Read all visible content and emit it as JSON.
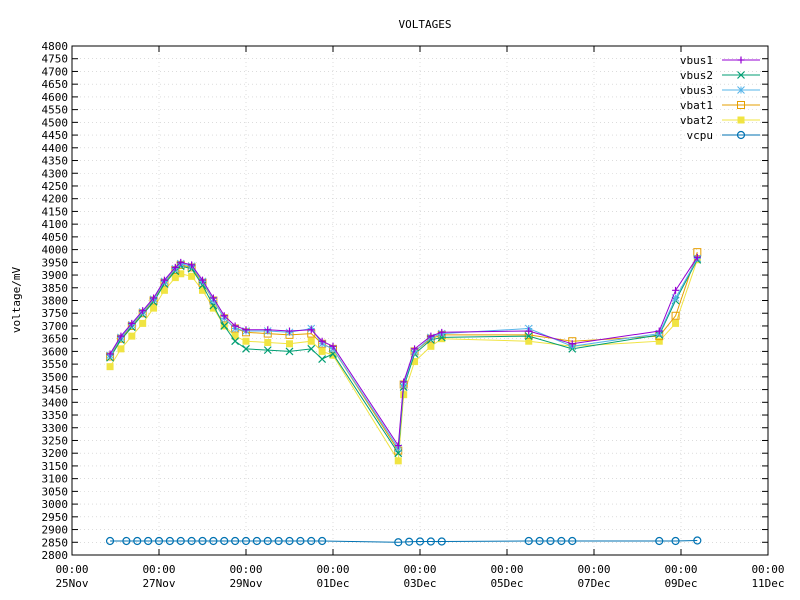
{
  "chart_data": {
    "type": "line",
    "title": "VOLTAGES",
    "xlabel": "",
    "ylabel": "voltage/mV",
    "xlim": [
      "2023-11-25 00:00",
      "2023-12-11 00:00"
    ],
    "ylim": [
      2800,
      4800
    ],
    "x_ticks": [
      {
        "date": "2023-11-25 00:00",
        "time": "00:00",
        "day": "25Nov"
      },
      {
        "date": "2023-11-27 00:00",
        "time": "00:00",
        "day": "27Nov"
      },
      {
        "date": "2023-11-29 00:00",
        "time": "00:00",
        "day": "29Nov"
      },
      {
        "date": "2023-12-01 00:00",
        "time": "00:00",
        "day": "01Dec"
      },
      {
        "date": "2023-12-03 00:00",
        "time": "00:00",
        "day": "03Dec"
      },
      {
        "date": "2023-12-05 00:00",
        "time": "00:00",
        "day": "05Dec"
      },
      {
        "date": "2023-12-07 00:00",
        "time": "00:00",
        "day": "07Dec"
      },
      {
        "date": "2023-12-09 00:00",
        "time": "00:00",
        "day": "09Dec"
      },
      {
        "date": "2023-12-11 00:00",
        "time": "00:00",
        "day": "11Dec"
      }
    ],
    "y_ticks": [
      2800,
      2850,
      2900,
      2950,
      3000,
      3050,
      3100,
      3150,
      3200,
      3250,
      3300,
      3350,
      3400,
      3450,
      3500,
      3550,
      3600,
      3650,
      3700,
      3750,
      3800,
      3850,
      3900,
      3950,
      4000,
      4050,
      4100,
      4150,
      4200,
      4250,
      4300,
      4350,
      4400,
      4450,
      4500,
      4550,
      4600,
      4650,
      4700,
      4750,
      4800
    ],
    "grid": true,
    "legend_position": "top-right",
    "series": [
      {
        "name": "vbus1",
        "color": "#9400d3",
        "marker": "plus",
        "x": [
          "2023-11-25 21:00",
          "2023-11-26 03:00",
          "2023-11-26 09:00",
          "2023-11-26 15:00",
          "2023-11-26 21:00",
          "2023-11-27 03:00",
          "2023-11-27 09:00",
          "2023-11-27 12:00",
          "2023-11-27 18:00",
          "2023-11-28 00:00",
          "2023-11-28 06:00",
          "2023-11-28 12:00",
          "2023-11-28 18:00",
          "2023-11-29 00:00",
          "2023-11-29 12:00",
          "2023-11-30 00:00",
          "2023-11-30 12:00",
          "2023-11-30 18:00",
          "2023-12-01 00:00",
          "2023-12-02 12:00",
          "2023-12-02 15:00",
          "2023-12-02 21:00",
          "2023-12-03 06:00",
          "2023-12-03 12:00",
          "2023-12-05 12:00",
          "2023-12-06 12:00",
          "2023-12-08 12:00",
          "2023-12-08 21:00",
          "2023-12-09 09:00"
        ],
        "y": [
          3590,
          3660,
          3710,
          3760,
          3810,
          3880,
          3930,
          3950,
          3940,
          3880,
          3810,
          3740,
          3700,
          3685,
          3685,
          3680,
          3685,
          3640,
          3620,
          3230,
          3480,
          3610,
          3660,
          3675,
          3680,
          3630,
          3680,
          3840,
          3970
        ]
      },
      {
        "name": "vbus2",
        "color": "#009e73",
        "marker": "x",
        "x": [
          "2023-11-25 21:00",
          "2023-11-26 03:00",
          "2023-11-26 09:00",
          "2023-11-26 15:00",
          "2023-11-26 21:00",
          "2023-11-27 03:00",
          "2023-11-27 09:00",
          "2023-11-27 12:00",
          "2023-11-27 18:00",
          "2023-11-28 00:00",
          "2023-11-28 06:00",
          "2023-11-28 12:00",
          "2023-11-28 18:00",
          "2023-11-29 00:00",
          "2023-11-29 12:00",
          "2023-11-30 00:00",
          "2023-11-30 12:00",
          "2023-11-30 18:00",
          "2023-12-01 00:00",
          "2023-12-02 12:00",
          "2023-12-02 15:00",
          "2023-12-02 21:00",
          "2023-12-03 06:00",
          "2023-12-03 12:00",
          "2023-12-05 12:00",
          "2023-12-06 12:00",
          "2023-12-08 12:00",
          "2023-12-08 21:00",
          "2023-12-09 09:00"
        ],
        "y": [
          3575,
          3645,
          3695,
          3745,
          3795,
          3865,
          3915,
          3935,
          3925,
          3860,
          3780,
          3700,
          3640,
          3610,
          3605,
          3600,
          3610,
          3570,
          3590,
          3200,
          3460,
          3590,
          3645,
          3655,
          3660,
          3610,
          3665,
          3800,
          3960
        ]
      },
      {
        "name": "vbus3",
        "color": "#56b4e9",
        "marker": "star",
        "x": [
          "2023-11-25 21:00",
          "2023-11-26 03:00",
          "2023-11-26 09:00",
          "2023-11-26 15:00",
          "2023-11-26 21:00",
          "2023-11-27 03:00",
          "2023-11-27 09:00",
          "2023-11-27 12:00",
          "2023-11-27 18:00",
          "2023-11-28 00:00",
          "2023-11-28 06:00",
          "2023-11-28 12:00",
          "2023-11-28 18:00",
          "2023-11-29 00:00",
          "2023-11-29 12:00",
          "2023-11-30 00:00",
          "2023-11-30 12:00",
          "2023-11-30 18:00",
          "2023-12-01 00:00",
          "2023-12-02 12:00",
          "2023-12-02 15:00",
          "2023-12-02 21:00",
          "2023-12-03 06:00",
          "2023-12-03 12:00",
          "2023-12-05 12:00",
          "2023-12-06 12:00",
          "2023-12-08 12:00",
          "2023-12-08 21:00",
          "2023-12-09 09:00"
        ],
        "y": [
          3585,
          3655,
          3705,
          3755,
          3805,
          3875,
          3925,
          3945,
          3935,
          3875,
          3800,
          3730,
          3690,
          3680,
          3680,
          3675,
          3690,
          3630,
          3610,
          3220,
          3470,
          3600,
          3655,
          3670,
          3690,
          3620,
          3670,
          3810,
          3965
        ]
      },
      {
        "name": "vbat1",
        "color": "#e69f00",
        "marker": "square-open",
        "x": [
          "2023-11-25 21:00",
          "2023-11-26 03:00",
          "2023-11-26 09:00",
          "2023-11-26 15:00",
          "2023-11-26 21:00",
          "2023-11-27 03:00",
          "2023-11-27 09:00",
          "2023-11-27 12:00",
          "2023-11-27 18:00",
          "2023-11-28 00:00",
          "2023-11-28 06:00",
          "2023-11-28 12:00",
          "2023-11-28 18:00",
          "2023-11-29 00:00",
          "2023-11-29 12:00",
          "2023-11-30 00:00",
          "2023-11-30 12:00",
          "2023-11-30 18:00",
          "2023-12-01 00:00",
          "2023-12-02 12:00",
          "2023-12-02 15:00",
          "2023-12-02 21:00",
          "2023-12-03 06:00",
          "2023-12-03 12:00",
          "2023-12-05 12:00",
          "2023-12-06 12:00",
          "2023-12-08 12:00",
          "2023-12-08 21:00",
          "2023-12-09 09:00"
        ],
        "y": [
          3580,
          3650,
          3700,
          3750,
          3800,
          3870,
          3920,
          3940,
          3930,
          3870,
          3800,
          3730,
          3690,
          3675,
          3670,
          3665,
          3670,
          3630,
          3610,
          3210,
          3470,
          3600,
          3650,
          3665,
          3665,
          3640,
          3660,
          3740,
          3990
        ]
      },
      {
        "name": "vbat2",
        "color": "#f0e442",
        "marker": "square-filled",
        "x": [
          "2023-11-25 21:00",
          "2023-11-26 03:00",
          "2023-11-26 09:00",
          "2023-11-26 15:00",
          "2023-11-26 21:00",
          "2023-11-27 03:00",
          "2023-11-27 09:00",
          "2023-11-27 12:00",
          "2023-11-27 18:00",
          "2023-11-28 00:00",
          "2023-11-28 06:00",
          "2023-11-28 12:00",
          "2023-11-28 18:00",
          "2023-11-29 00:00",
          "2023-11-29 12:00",
          "2023-11-30 00:00",
          "2023-11-30 12:00",
          "2023-11-30 18:00",
          "2023-12-01 00:00",
          "2023-12-02 12:00",
          "2023-12-02 15:00",
          "2023-12-02 21:00",
          "2023-12-03 06:00",
          "2023-12-03 12:00",
          "2023-12-05 12:00",
          "2023-12-06 12:00",
          "2023-12-08 12:00",
          "2023-12-08 21:00",
          "2023-12-09 09:00"
        ],
        "y": [
          3540,
          3610,
          3660,
          3710,
          3770,
          3840,
          3890,
          3905,
          3895,
          3840,
          3770,
          3700,
          3660,
          3640,
          3635,
          3630,
          3640,
          3600,
          3585,
          3170,
          3430,
          3560,
          3620,
          3650,
          3640,
          3620,
          3640,
          3710,
          3960
        ]
      },
      {
        "name": "vcpu",
        "color": "#0072b2",
        "marker": "circle-open",
        "x": [
          "2023-11-25 21:00",
          "2023-11-26 06:00",
          "2023-11-26 12:00",
          "2023-11-26 18:00",
          "2023-11-27 00:00",
          "2023-11-27 06:00",
          "2023-11-27 12:00",
          "2023-11-27 18:00",
          "2023-11-28 00:00",
          "2023-11-28 06:00",
          "2023-11-28 12:00",
          "2023-11-28 18:00",
          "2023-11-29 00:00",
          "2023-11-29 06:00",
          "2023-11-29 12:00",
          "2023-11-29 18:00",
          "2023-11-30 00:00",
          "2023-11-30 06:00",
          "2023-11-30 12:00",
          "2023-11-30 18:00",
          "2023-12-02 12:00",
          "2023-12-02 18:00",
          "2023-12-03 00:00",
          "2023-12-03 06:00",
          "2023-12-03 12:00",
          "2023-12-05 12:00",
          "2023-12-05 18:00",
          "2023-12-06 00:00",
          "2023-12-06 06:00",
          "2023-12-06 12:00",
          "2023-12-08 12:00",
          "2023-12-08 21:00",
          "2023-12-09 09:00"
        ],
        "y": [
          2855,
          2855,
          2855,
          2855,
          2855,
          2855,
          2855,
          2855,
          2855,
          2855,
          2855,
          2855,
          2855,
          2855,
          2855,
          2855,
          2855,
          2855,
          2855,
          2855,
          2850,
          2852,
          2853,
          2853,
          2853,
          2855,
          2855,
          2855,
          2855,
          2855,
          2855,
          2855,
          2857
        ]
      }
    ]
  }
}
